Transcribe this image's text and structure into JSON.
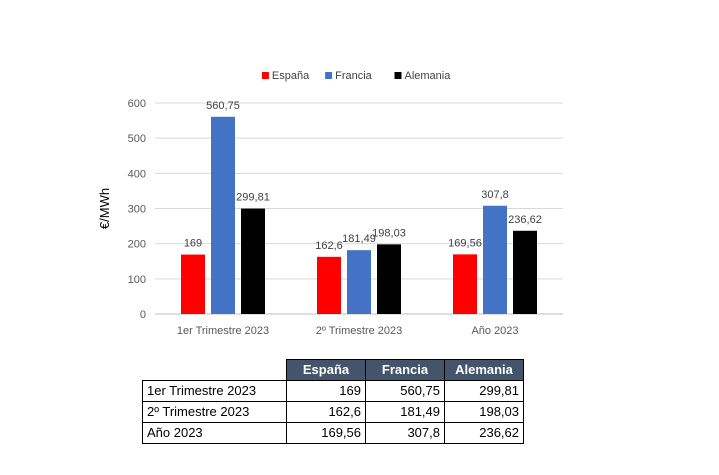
{
  "chart_data": {
    "type": "bar",
    "categories": [
      "1er Trimestre 2023",
      "2º Trimestre 2023",
      "Año 2023"
    ],
    "series": [
      {
        "name": "España",
        "color": "#ff0000",
        "values": [
          169,
          162.6,
          169.56
        ],
        "labels": [
          "169",
          "162,6",
          "169,56"
        ]
      },
      {
        "name": "Francia",
        "color": "#4472c4",
        "values": [
          560.75,
          181.49,
          307.8
        ],
        "labels": [
          "560,75",
          "181,49",
          "307,8"
        ]
      },
      {
        "name": "Alemania",
        "color": "#000000",
        "values": [
          299.81,
          198.03,
          236.62
        ],
        "labels": [
          "299,81",
          "198,03",
          "236,62"
        ]
      }
    ],
    "ylabel": "€/MWh",
    "ylim": [
      0,
      600
    ],
    "yticks": [
      0,
      100,
      200,
      300,
      400,
      500,
      600
    ],
    "grid": true,
    "legend": "top"
  },
  "table": {
    "headers": [
      "España",
      "Francia",
      "Alemania"
    ],
    "rows": [
      {
        "label": "1er Trimestre 2023",
        "cells": [
          "169",
          "560,75",
          "299,81"
        ]
      },
      {
        "label": "2º Trimestre 2023",
        "cells": [
          "162,6",
          "181,49",
          "198,03"
        ]
      },
      {
        "label": "Año 2023",
        "cells": [
          "169,56",
          "307,8",
          "236,62"
        ]
      }
    ]
  }
}
